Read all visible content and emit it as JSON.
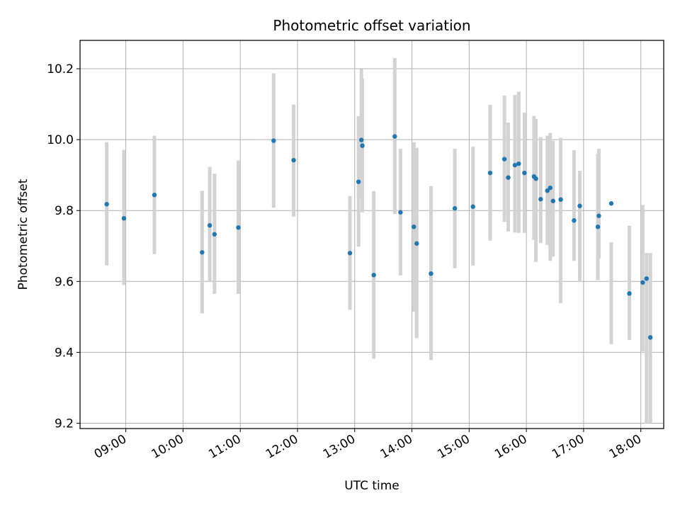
{
  "chart_data": {
    "type": "scatter",
    "title": "Photometric offset variation",
    "xlabel": "UTC time",
    "ylabel": "Photometric offset",
    "x_ticks": [
      "09:00",
      "10:00",
      "11:00",
      "12:00",
      "13:00",
      "14:00",
      "15:00",
      "16:00",
      "17:00",
      "18:00"
    ],
    "y_ticks": [
      "9.2",
      "9.4",
      "9.6",
      "9.8",
      "10.0",
      "10.2"
    ],
    "xlim": [
      "08:12",
      "18:24"
    ],
    "ylim": [
      9.185,
      10.28
    ],
    "grid": true,
    "colors": {
      "point": "#1f77b4",
      "errorbar": "#d3d3d3",
      "grid": "#b0b0b0"
    },
    "series": [
      {
        "x": [
          "08:40",
          "08:58",
          "09:30",
          "10:20",
          "10:28",
          "10:33",
          "10:58",
          "11:35",
          "11:56",
          "12:55",
          "13:04",
          "13:07",
          "13:08",
          "13:20",
          "13:42",
          "13:48",
          "14:02",
          "14:05",
          "14:20",
          "14:45",
          "15:04",
          "15:22",
          "15:37",
          "15:41",
          "15:48",
          "15:52",
          "15:58",
          "16:08",
          "16:10",
          "16:15",
          "16:22",
          "16:25",
          "16:28",
          "16:36",
          "16:50",
          "16:56",
          "17:15",
          "17:16",
          "17:29",
          "17:48",
          "18:02",
          "18:06",
          "18:10"
        ],
        "y": [
          9.818,
          9.778,
          9.844,
          9.682,
          9.758,
          9.733,
          9.752,
          9.997,
          9.942,
          9.68,
          9.881,
          9.999,
          9.983,
          9.618,
          10.009,
          9.795,
          9.754,
          9.707,
          9.622,
          9.806,
          9.811,
          9.906,
          9.945,
          9.893,
          9.928,
          9.932,
          9.906,
          9.896,
          9.89,
          9.832,
          9.856,
          9.864,
          9.827,
          9.831,
          9.772,
          9.813,
          9.754,
          9.785,
          9.82,
          9.566,
          9.597,
          9.608,
          9.442
        ],
        "err_low": [
          9.645,
          9.59,
          9.677,
          9.51,
          9.598,
          9.565,
          9.565,
          9.808,
          9.783,
          9.52,
          9.698,
          9.835,
          9.795,
          9.382,
          9.79,
          9.617,
          9.515,
          9.44,
          9.378,
          9.637,
          9.645,
          9.715,
          9.768,
          9.741,
          9.738,
          9.737,
          9.737,
          9.717,
          9.655,
          9.708,
          9.703,
          9.658,
          9.67,
          9.539,
          9.658,
          9.598,
          9.604,
          9.665,
          9.423,
          9.435,
          9.403,
          9.2,
          9.2
        ],
        "err_high": [
          9.993,
          9.971,
          10.011,
          9.856,
          9.923,
          9.904,
          9.941,
          10.187,
          10.099,
          9.841,
          10.066,
          10.199,
          10.172,
          9.855,
          10.23,
          9.974,
          9.993,
          9.977,
          9.869,
          9.974,
          9.98,
          10.098,
          10.124,
          10.048,
          10.126,
          10.135,
          10.076,
          10.067,
          10.058,
          10.007,
          10.011,
          10.019,
          9.997,
          10.005,
          9.97,
          9.912,
          9.96,
          9.974,
          9.71,
          9.757,
          9.816,
          9.68,
          9.68
        ]
      }
    ]
  }
}
